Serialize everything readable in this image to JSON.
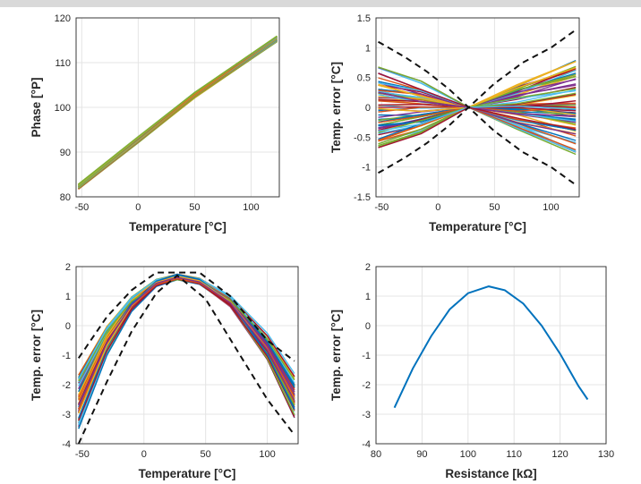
{
  "chart_data": [
    {
      "id": "a",
      "type": "line",
      "xlabel": "Temperature [°C]",
      "ylabel": "Phase [°P]",
      "xlim": [
        -55,
        125
      ],
      "ylim": [
        80,
        120
      ],
      "xticks": [
        -50,
        0,
        50,
        100
      ],
      "yticks": [
        80,
        90,
        100,
        110,
        120
      ],
      "grid": true,
      "colors": [
        "#8a9a2a",
        "#c9a227",
        "#a8c23a",
        "#77ac30",
        "#edb120",
        "#d95319",
        "#7e2f8e",
        "#4dbeee"
      ],
      "bands": [
        {
          "x": [
            -53,
            0,
            50,
            123
          ],
          "upper": [
            83,
            93.5,
            103.5,
            116
          ],
          "lower": [
            81.5,
            92,
            102,
            114.5
          ]
        }
      ]
    },
    {
      "id": "b",
      "type": "line",
      "xlabel": "Temperature [°C]",
      "ylabel": "Temp. error [°C]",
      "xlim": [
        -55,
        125
      ],
      "ylim": [
        -1.5,
        1.5
      ],
      "xticks": [
        -50,
        0,
        50,
        100
      ],
      "yticks": [
        -1.5,
        -1,
        -0.5,
        0,
        0.5,
        1,
        1.5
      ],
      "grid": true,
      "colors": [
        "#0072bd",
        "#d95319",
        "#edb120",
        "#7e2f8e",
        "#77ac30",
        "#4dbeee",
        "#a2142f"
      ],
      "series_ends": {
        "x": [
          -53,
          -15,
          27,
          70,
          122
        ],
        "left_max": 0.7,
        "right_max": 0.8
      },
      "series": [
        {
          "name": "",
          "style": "dashed",
          "x": [
            -53,
            -30,
            -10,
            10,
            27,
            50,
            75,
            100,
            122
          ],
          "y": [
            1.1,
            0.85,
            0.6,
            0.3,
            0,
            0.4,
            0.75,
            1.0,
            1.3
          ]
        },
        {
          "name": "",
          "style": "dashed",
          "x": [
            -53,
            -30,
            -10,
            10,
            27,
            50,
            75,
            100,
            122
          ],
          "y": [
            -1.1,
            -0.85,
            -0.6,
            -0.3,
            0,
            -0.4,
            -0.75,
            -1.0,
            -1.3
          ]
        }
      ]
    },
    {
      "id": "c",
      "type": "line",
      "xlabel": "Temperature [°C]",
      "ylabel": "Temp. error [°C]",
      "xlim": [
        -55,
        125
      ],
      "ylim": [
        -4,
        2
      ],
      "xticks": [
        -50,
        0,
        50,
        100
      ],
      "yticks": [
        -4,
        -3,
        -2,
        -1,
        0,
        1,
        2
      ],
      "grid": true,
      "colors": [
        "#0072bd",
        "#d95319",
        "#edb120",
        "#7e2f8e",
        "#77ac30",
        "#4dbeee",
        "#a2142f"
      ],
      "series_ends": {
        "x": [
          -53,
          -30,
          -10,
          10,
          27,
          45,
          70,
          100,
          122
        ],
        "peak_range": [
          1.55,
          1.75
        ],
        "left_range": [
          -3.5,
          -1.6
        ],
        "right_range": [
          -3.3,
          -1.5
        ]
      },
      "series": [
        {
          "name": "",
          "style": "dashed",
          "x": [
            -53,
            -30,
            -10,
            10,
            25,
            45,
            70,
            100,
            122
          ],
          "y": [
            -1.1,
            0.3,
            1.2,
            1.8,
            1.8,
            1.8,
            1.0,
            -0.5,
            -1.2
          ]
        },
        {
          "name": "",
          "style": "dashed",
          "x": [
            -53,
            -30,
            -10,
            10,
            27,
            50,
            75,
            100,
            122
          ],
          "y": [
            -4.0,
            -1.9,
            -0.2,
            1.1,
            1.7,
            0.9,
            -0.8,
            -2.5,
            -3.7
          ]
        }
      ]
    },
    {
      "id": "d",
      "type": "line",
      "xlabel": "Resistance [kΩ]",
      "ylabel": "Temp. error [°C]",
      "xlim": [
        80,
        130
      ],
      "ylim": [
        -4,
        2
      ],
      "xticks": [
        80,
        90,
        100,
        110,
        120,
        130
      ],
      "yticks": [
        -4,
        -3,
        -2,
        -1,
        0,
        1,
        2
      ],
      "grid": true,
      "colors": [
        "#0072bd"
      ],
      "series": [
        {
          "name": "",
          "x": [
            84,
            88,
            92,
            96,
            100,
            104.5,
            108,
            112,
            116,
            120,
            124,
            126
          ],
          "y": [
            -2.78,
            -1.45,
            -0.35,
            0.55,
            1.1,
            1.33,
            1.2,
            0.75,
            0.0,
            -0.95,
            -2.05,
            -2.5
          ]
        }
      ]
    }
  ]
}
